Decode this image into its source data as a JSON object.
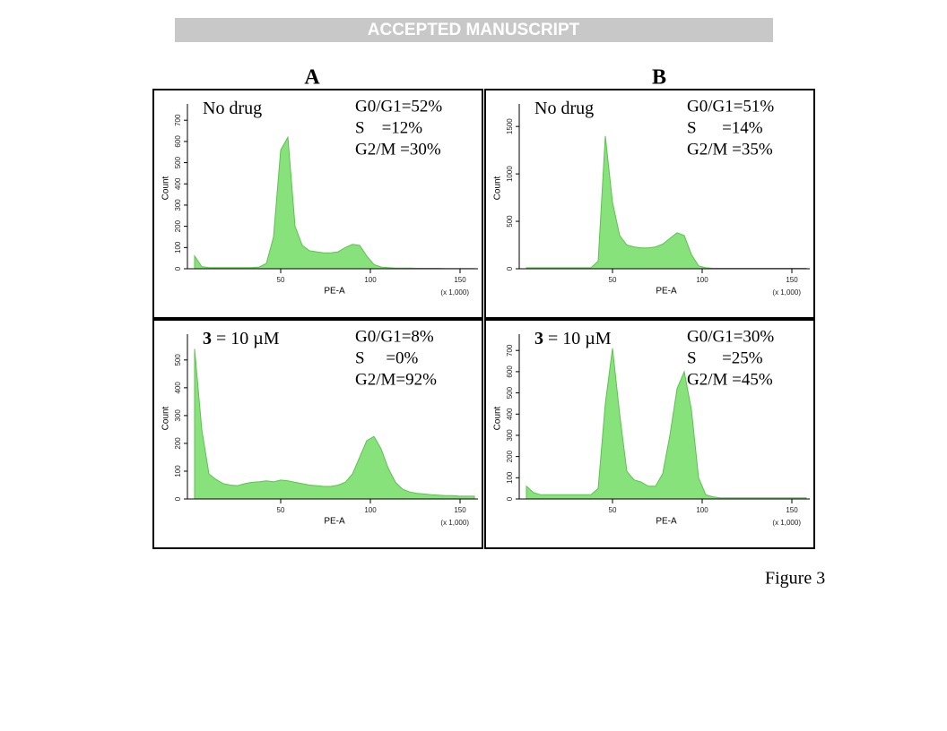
{
  "header": "ACCEPTED MANUSCRIPT",
  "panel_labels": [
    "A",
    "B"
  ],
  "caption": "Figure 3",
  "chart_data": [
    {
      "type": "area",
      "condition": "No drug",
      "stats": [
        "G0/G1=52%",
        "S    =12%",
        "G2/M =30%"
      ],
      "xlabel": "PE-A",
      "x_unit": "(x 1,000)",
      "ylabel": "Count",
      "color": "#88e27c",
      "x": [
        2,
        6,
        10,
        14,
        18,
        22,
        26,
        30,
        34,
        38,
        42,
        46,
        50,
        54,
        58,
        62,
        66,
        70,
        74,
        78,
        82,
        86,
        90,
        94,
        98,
        102,
        106,
        110,
        114,
        118,
        122,
        126,
        130,
        134,
        138,
        142,
        146,
        150,
        154,
        158
      ],
      "values": [
        60,
        10,
        5,
        5,
        5,
        5,
        5,
        5,
        5,
        8,
        25,
        150,
        560,
        620,
        200,
        110,
        85,
        80,
        75,
        75,
        80,
        100,
        115,
        110,
        60,
        20,
        8,
        5,
        3,
        3,
        3,
        2,
        2,
        2,
        2,
        1,
        1,
        1,
        1,
        1
      ],
      "xlim": [
        0,
        160
      ],
      "xticks": [
        50,
        100,
        150
      ],
      "ylim": [
        0,
        760
      ],
      "yticks": [
        0,
        100,
        200,
        300,
        400,
        500,
        600,
        700
      ]
    },
    {
      "type": "area",
      "condition": "No drug",
      "stats": [
        "G0/G1=51%",
        "S      =14%",
        "G2/M =35%"
      ],
      "xlabel": "PE-A",
      "x_unit": "(x 1,000)",
      "ylabel": "Count",
      "color": "#88e27c",
      "x": [
        2,
        6,
        10,
        14,
        18,
        22,
        26,
        30,
        34,
        38,
        42,
        46,
        50,
        54,
        58,
        62,
        66,
        70,
        74,
        78,
        82,
        86,
        90,
        94,
        98,
        102,
        106,
        110,
        114,
        118,
        122,
        126,
        130,
        134,
        138,
        142,
        146,
        150,
        154,
        158
      ],
      "values": [
        10,
        10,
        10,
        10,
        10,
        10,
        10,
        10,
        10,
        10,
        80,
        1400,
        700,
        350,
        250,
        230,
        220,
        220,
        230,
        260,
        320,
        380,
        350,
        150,
        30,
        10,
        5,
        5,
        5,
        5,
        5,
        5,
        5,
        5,
        5,
        5,
        5,
        5,
        5,
        5
      ],
      "xlim": [
        0,
        160
      ],
      "xticks": [
        50,
        100,
        150
      ],
      "ylim": [
        0,
        1700
      ],
      "yticks": [
        0,
        500,
        1000,
        1500
      ]
    },
    {
      "type": "area",
      "compound": "3",
      "condition": " = 10 µM",
      "stats": [
        "G0/G1=8%",
        "S     =0%",
        "G2/M=92%"
      ],
      "xlabel": "PE-A",
      "x_unit": "(x 1,000)",
      "ylabel": "Count",
      "color": "#88e27c",
      "x": [
        2,
        6,
        10,
        14,
        18,
        22,
        26,
        30,
        34,
        38,
        42,
        46,
        50,
        54,
        58,
        62,
        66,
        70,
        74,
        78,
        82,
        86,
        90,
        94,
        98,
        102,
        106,
        110,
        114,
        118,
        122,
        126,
        130,
        134,
        138,
        142,
        146,
        150,
        154,
        158
      ],
      "values": [
        540,
        250,
        90,
        70,
        55,
        50,
        48,
        55,
        60,
        62,
        65,
        62,
        68,
        65,
        60,
        55,
        50,
        48,
        45,
        45,
        50,
        60,
        90,
        150,
        210,
        225,
        180,
        110,
        60,
        35,
        25,
        20,
        18,
        15,
        14,
        12,
        12,
        10,
        10,
        10
      ],
      "xlim": [
        0,
        160
      ],
      "xticks": [
        50,
        100,
        150
      ],
      "ylim": [
        0,
        580
      ],
      "yticks": [
        0,
        100,
        200,
        300,
        400,
        500
      ]
    },
    {
      "type": "area",
      "compound": "3",
      "condition": " = 10 µM",
      "stats": [
        "G0/G1=30%",
        "S      =25%",
        "G2/M =45%"
      ],
      "xlabel": "PE-A",
      "x_unit": "(x 1,000)",
      "ylabel": "Count",
      "color": "#88e27c",
      "x": [
        2,
        6,
        10,
        14,
        18,
        22,
        26,
        30,
        34,
        38,
        42,
        46,
        50,
        54,
        58,
        62,
        66,
        70,
        74,
        78,
        82,
        86,
        90,
        94,
        98,
        102,
        106,
        110,
        114,
        118,
        122,
        126,
        130,
        134,
        138,
        142,
        146,
        150,
        154,
        158
      ],
      "values": [
        60,
        30,
        20,
        20,
        20,
        20,
        20,
        20,
        20,
        20,
        50,
        450,
        710,
        400,
        130,
        90,
        80,
        60,
        60,
        120,
        300,
        520,
        600,
        420,
        100,
        20,
        10,
        5,
        5,
        5,
        5,
        5,
        5,
        5,
        5,
        5,
        5,
        5,
        5,
        5
      ],
      "xlim": [
        0,
        160
      ],
      "xticks": [
        50,
        100,
        150
      ],
      "ylim": [
        0,
        760
      ],
      "yticks": [
        0,
        100,
        200,
        300,
        400,
        500,
        600,
        700
      ]
    }
  ]
}
